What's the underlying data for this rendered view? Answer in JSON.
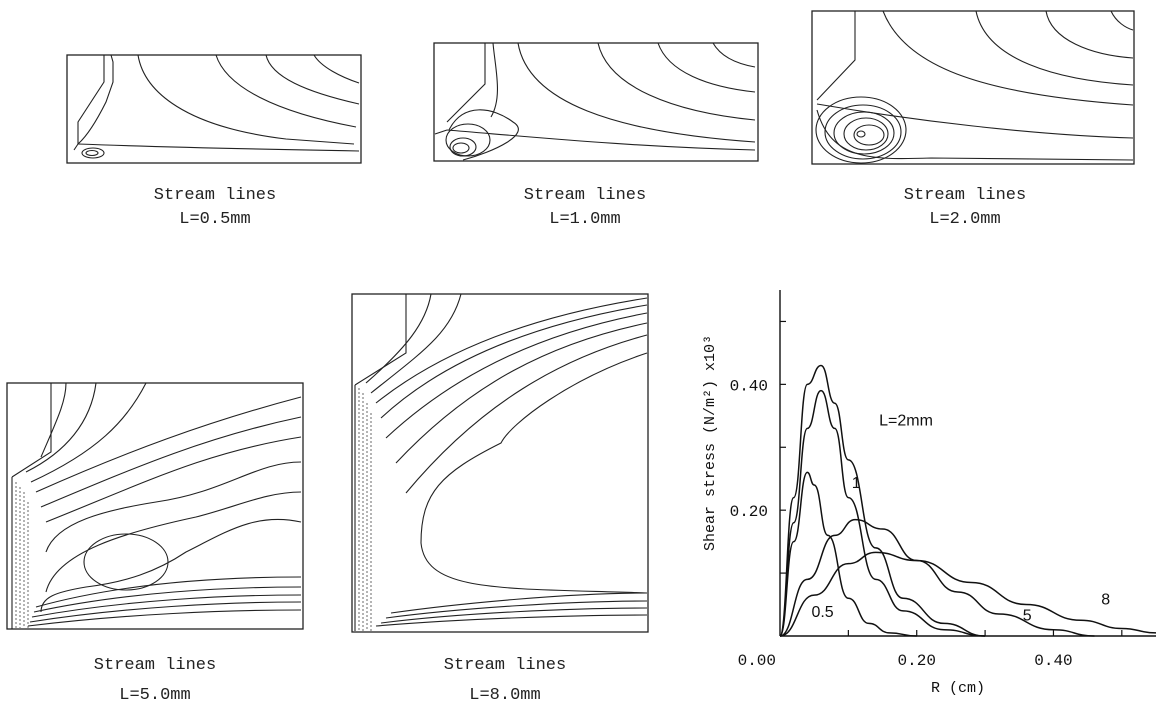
{
  "panels": [
    {
      "caption_title": "Stream lines",
      "caption_value": "L=0.5mm"
    },
    {
      "caption_title": "Stream lines",
      "caption_value": "L=1.0mm"
    },
    {
      "caption_title": "Stream lines",
      "caption_value": "L=2.0mm"
    },
    {
      "caption_title": "Stream lines",
      "caption_value": "L=5.0mm"
    },
    {
      "caption_title": "Stream lines",
      "caption_value": "L=8.0mm"
    }
  ],
  "chart_data": {
    "type": "line",
    "ylabel": "Shear stress (N/m²)  x10³",
    "xlabel": "R (cm)",
    "x_ticks": [
      "0.00",
      "0.20",
      "0.40"
    ],
    "y_ticks": [
      "0.20",
      "0.40"
    ],
    "xlim": [
      0,
      0.55
    ],
    "ylim": [
      0,
      0.55
    ],
    "grid": false,
    "series": [
      {
        "name": "0.5",
        "x": [
          0.0,
          0.02,
          0.04,
          0.05,
          0.07,
          0.1,
          0.13,
          0.16,
          0.2
        ],
        "y": [
          0.0,
          0.15,
          0.26,
          0.24,
          0.16,
          0.06,
          0.02,
          0.005,
          0.0
        ]
      },
      {
        "name": "1",
        "x": [
          0.0,
          0.02,
          0.04,
          0.06,
          0.08,
          0.1,
          0.14,
          0.18,
          0.24,
          0.3
        ],
        "y": [
          0.0,
          0.18,
          0.33,
          0.39,
          0.33,
          0.22,
          0.09,
          0.04,
          0.01,
          0.0
        ]
      },
      {
        "name": "L=2mm",
        "x": [
          0.0,
          0.02,
          0.04,
          0.06,
          0.08,
          0.1,
          0.14,
          0.18,
          0.24,
          0.3
        ],
        "y": [
          0.0,
          0.22,
          0.4,
          0.43,
          0.37,
          0.28,
          0.14,
          0.06,
          0.02,
          0.0
        ]
      },
      {
        "name": "5",
        "x": [
          0.0,
          0.04,
          0.08,
          0.11,
          0.15,
          0.2,
          0.26,
          0.32,
          0.4,
          0.46
        ],
        "y": [
          0.0,
          0.09,
          0.16,
          0.185,
          0.17,
          0.12,
          0.07,
          0.035,
          0.01,
          0.0
        ]
      },
      {
        "name": "8",
        "x": [
          0.0,
          0.05,
          0.1,
          0.14,
          0.2,
          0.28,
          0.36,
          0.44,
          0.5,
          0.55
        ],
        "y": [
          0.0,
          0.065,
          0.115,
          0.133,
          0.12,
          0.085,
          0.05,
          0.025,
          0.012,
          0.005
        ]
      }
    ]
  }
}
